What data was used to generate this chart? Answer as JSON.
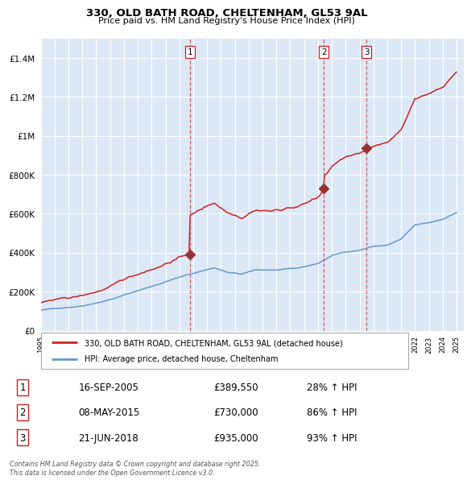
{
  "title": "330, OLD BATH ROAD, CHELTENHAM, GL53 9AL",
  "subtitle": "Price paid vs. HM Land Registry's House Price Index (HPI)",
  "ylim": [
    0,
    1500000
  ],
  "yticks": [
    0,
    200000,
    400000,
    600000,
    800000,
    1000000,
    1200000,
    1400000
  ],
  "ytick_labels": [
    "£0",
    "£200K",
    "£400K",
    "£600K",
    "£800K",
    "£1M",
    "£1.2M",
    "£1.4M"
  ],
  "x_start_year": 1995,
  "x_end_year": 2025,
  "red_color": "#cc2222",
  "blue_color": "#6699cc",
  "bg_color": "#dce8f5",
  "dashed_color": "#dd4444",
  "transaction_prices": [
    389550,
    730000,
    935000
  ],
  "transaction_labels": [
    "1",
    "2",
    "3"
  ],
  "transaction_pct": [
    "28% ↑ HPI",
    "86% ↑ HPI",
    "93% ↑ HPI"
  ],
  "transaction_date_str": [
    "16-SEP-2005",
    "08-MAY-2015",
    "21-JUN-2018"
  ],
  "legend_label_red": "330, OLD BATH ROAD, CHELTENHAM, GL53 9AL (detached house)",
  "legend_label_blue": "HPI: Average price, detached house, Cheltenham",
  "footer": "Contains HM Land Registry data © Crown copyright and database right 2025.\nThis data is licensed under the Open Government Licence v3.0."
}
